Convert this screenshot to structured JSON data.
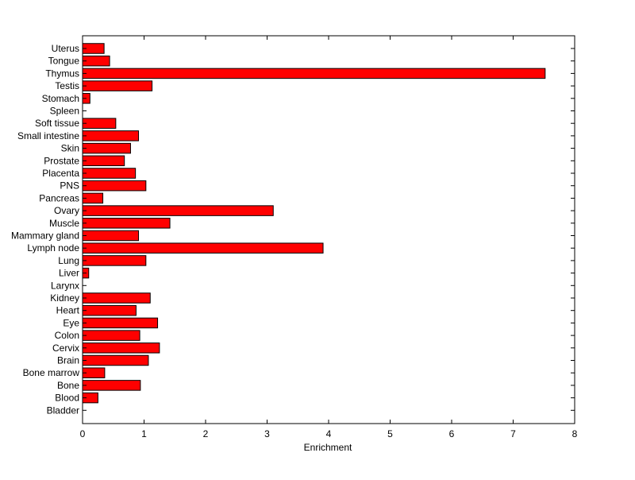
{
  "chart_data": {
    "type": "bar",
    "orientation": "horizontal",
    "xlabel": "Enrichment",
    "ylabel": "",
    "xlim": [
      0,
      8
    ],
    "xticks": [
      0,
      1,
      2,
      3,
      4,
      5,
      6,
      7,
      8
    ],
    "grid": false,
    "bar_color": "#ff0000",
    "categories": [
      "Uterus",
      "Tongue",
      "Thymus",
      "Testis",
      "Stomach",
      "Spleen",
      "Soft tissue",
      "Small intestine",
      "Skin",
      "Prostate",
      "Placenta",
      "PNS",
      "Pancreas",
      "Ovary",
      "Muscle",
      "Mammary gland",
      "Lymph node",
      "Lung",
      "Liver",
      "Larynx",
      "Kidney",
      "Heart",
      "Eye",
      "Colon",
      "Cervix",
      "Brain",
      "Bone marrow",
      "Bone",
      "Blood",
      "Bladder"
    ],
    "values": [
      0.35,
      0.44,
      7.52,
      1.13,
      0.12,
      0.0,
      0.54,
      0.91,
      0.78,
      0.68,
      0.86,
      1.03,
      0.33,
      3.1,
      1.42,
      0.91,
      3.91,
      1.03,
      0.1,
      0.0,
      1.1,
      0.87,
      1.22,
      0.93,
      1.25,
      1.07,
      0.36,
      0.94,
      0.25,
      0.0
    ]
  }
}
